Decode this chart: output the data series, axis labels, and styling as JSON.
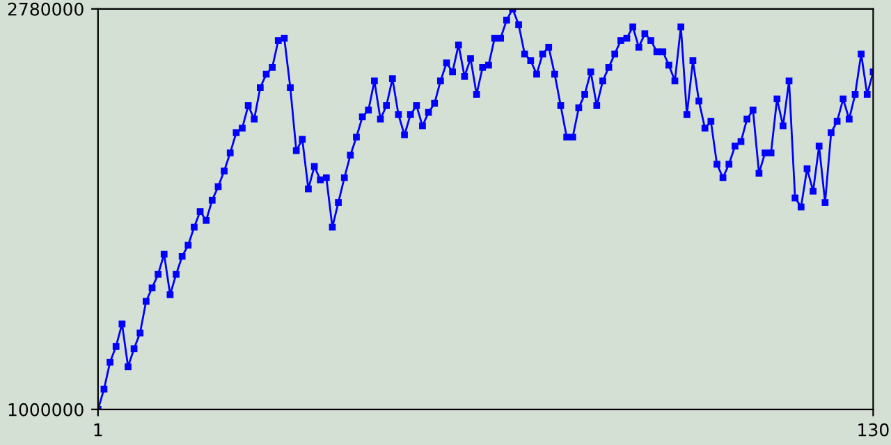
{
  "chart_data": {
    "type": "line",
    "marker": "square",
    "line_style": "solid",
    "grid": false,
    "x": [
      1,
      2,
      3,
      4,
      5,
      6,
      7,
      8,
      9,
      10,
      11,
      12,
      13,
      14,
      15,
      16,
      17,
      18,
      19,
      20,
      21,
      22,
      23,
      24,
      25,
      26,
      27,
      28,
      29,
      30,
      31,
      32,
      33,
      34,
      35,
      36,
      37,
      38,
      39,
      40,
      41,
      42,
      43,
      44,
      45,
      46,
      47,
      48,
      49,
      50,
      51,
      52,
      53,
      54,
      55,
      56,
      57,
      58,
      59,
      60,
      61,
      62,
      63,
      64,
      65,
      66,
      67,
      68,
      69,
      70,
      71,
      72,
      73,
      74,
      75,
      76,
      77,
      78,
      79,
      80,
      81,
      82,
      83,
      84,
      85,
      86,
      87,
      88,
      89,
      90,
      91,
      92,
      93,
      94,
      95,
      96,
      97,
      98,
      99,
      100,
      101,
      102,
      103,
      104,
      105,
      106,
      107,
      108,
      109,
      110,
      111,
      112,
      113,
      114,
      115,
      116,
      117,
      118,
      119,
      120,
      121,
      122,
      123,
      124,
      125,
      126,
      127,
      128,
      129,
      130
    ],
    "series": [
      {
        "color": "#0000ff",
        "values": [
          1000000,
          1090000,
          1210000,
          1280000,
          1380000,
          1190000,
          1270000,
          1340000,
          1480000,
          1540000,
          1600000,
          1690000,
          1510000,
          1600000,
          1680000,
          1730000,
          1810000,
          1880000,
          1840000,
          1930000,
          1990000,
          2060000,
          2140000,
          2230000,
          2250000,
          2350000,
          2290000,
          2430000,
          2490000,
          2520000,
          2640000,
          2650000,
          2430000,
          2150000,
          2200000,
          1980000,
          2080000,
          2020000,
          2030000,
          1810000,
          1920000,
          2030000,
          2130000,
          2210000,
          2300000,
          2330000,
          2460000,
          2290000,
          2350000,
          2470000,
          2310000,
          2220000,
          2310000,
          2350000,
          2260000,
          2320000,
          2360000,
          2460000,
          2540000,
          2500000,
          2620000,
          2480000,
          2560000,
          2400000,
          2520000,
          2530000,
          2650000,
          2650000,
          2730000,
          2780000,
          2710000,
          2580000,
          2550000,
          2490000,
          2580000,
          2610000,
          2490000,
          2350000,
          2210000,
          2210000,
          2340000,
          2400000,
          2500000,
          2350000,
          2460000,
          2520000,
          2580000,
          2640000,
          2650000,
          2700000,
          2610000,
          2670000,
          2640000,
          2590000,
          2590000,
          2530000,
          2460000,
          2700000,
          2310000,
          2550000,
          2370000,
          2250000,
          2280000,
          2090000,
          2030000,
          2090000,
          2170000,
          2190000,
          2290000,
          2330000,
          2050000,
          2140000,
          2140000,
          2380000,
          2260000,
          2460000,
          1940000,
          1900000,
          2070000,
          1970000,
          2170000,
          1920000,
          2230000,
          2280000,
          2380000,
          2290000,
          2400000,
          2580000,
          2400000,
          2500000
        ]
      }
    ],
    "xlim": [
      1,
      130
    ],
    "xticks": [
      1,
      130
    ],
    "ylim": [
      1000000,
      2780000
    ],
    "yticks": [
      1000000,
      2780000
    ]
  }
}
